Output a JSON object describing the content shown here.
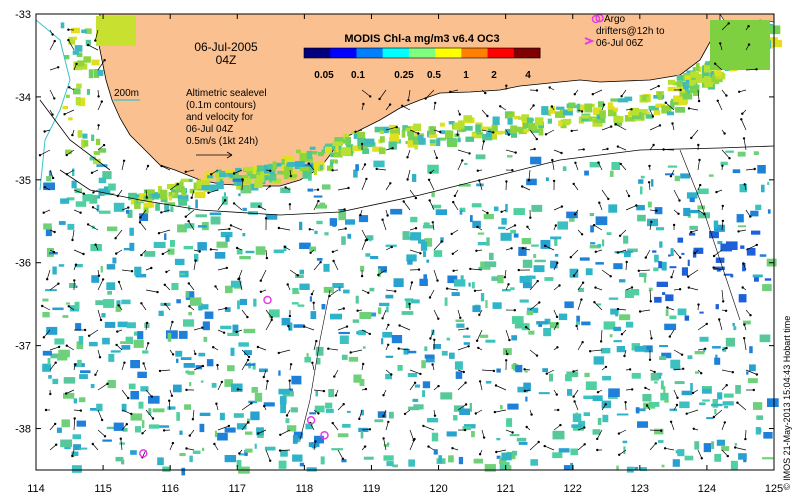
{
  "date_label": "06-Jul-2005",
  "time_label": "04Z",
  "colorbar": {
    "title": "MODIS Chl-a mg/m3 v6.4 OC3",
    "tick_labels": [
      "0.05",
      "0.1",
      "0.25",
      "0.5",
      "1",
      "2",
      "4"
    ],
    "colors": [
      "#00007f",
      "#0000ff",
      "#007fff",
      "#00ffff",
      "#7fff7f",
      "#ffff00",
      "#ff7f00",
      "#ff0000",
      "#7f0000"
    ]
  },
  "isobath_label": "200m",
  "altimetry_note": [
    "Altimetric sealevel",
    "(0.1m contours)",
    "and velocity for",
    "06-Jul 04Z",
    "0.5m/s (1kt 24h)"
  ],
  "argo_legend": [
    "Argo",
    "drifters@12h to",
    "06-Jul 06Z"
  ],
  "credit": "© IMOS 21-May-2013 15:04:43 Hobart time",
  "x_axis": {
    "ticks": [
      "114",
      "115",
      "116",
      "117",
      "118",
      "119",
      "120",
      "121",
      "122",
      "123",
      "124",
      "125"
    ],
    "range": [
      114,
      125
    ]
  },
  "y_axis": {
    "ticks": [
      "-33",
      "-34",
      "-35",
      "-36",
      "-37",
      "-38"
    ],
    "range": [
      -38.5,
      -33
    ]
  },
  "argo_floats": [
    {
      "lon": 122.4,
      "lat": -33.05
    },
    {
      "lon": 117.45,
      "lat": -36.45
    },
    {
      "lon": 118.1,
      "lat": -37.9
    },
    {
      "lon": 118.3,
      "lat": -38.08
    },
    {
      "lon": 115.6,
      "lat": -38.3
    }
  ],
  "colors": {
    "land": "#fbc08f",
    "isobath": "#39c3c9",
    "argo": "#e63be6",
    "chl_low": "#2fb3c8",
    "chl_mid": "#4fd0a0",
    "chl_high": "#8ed43a"
  }
}
